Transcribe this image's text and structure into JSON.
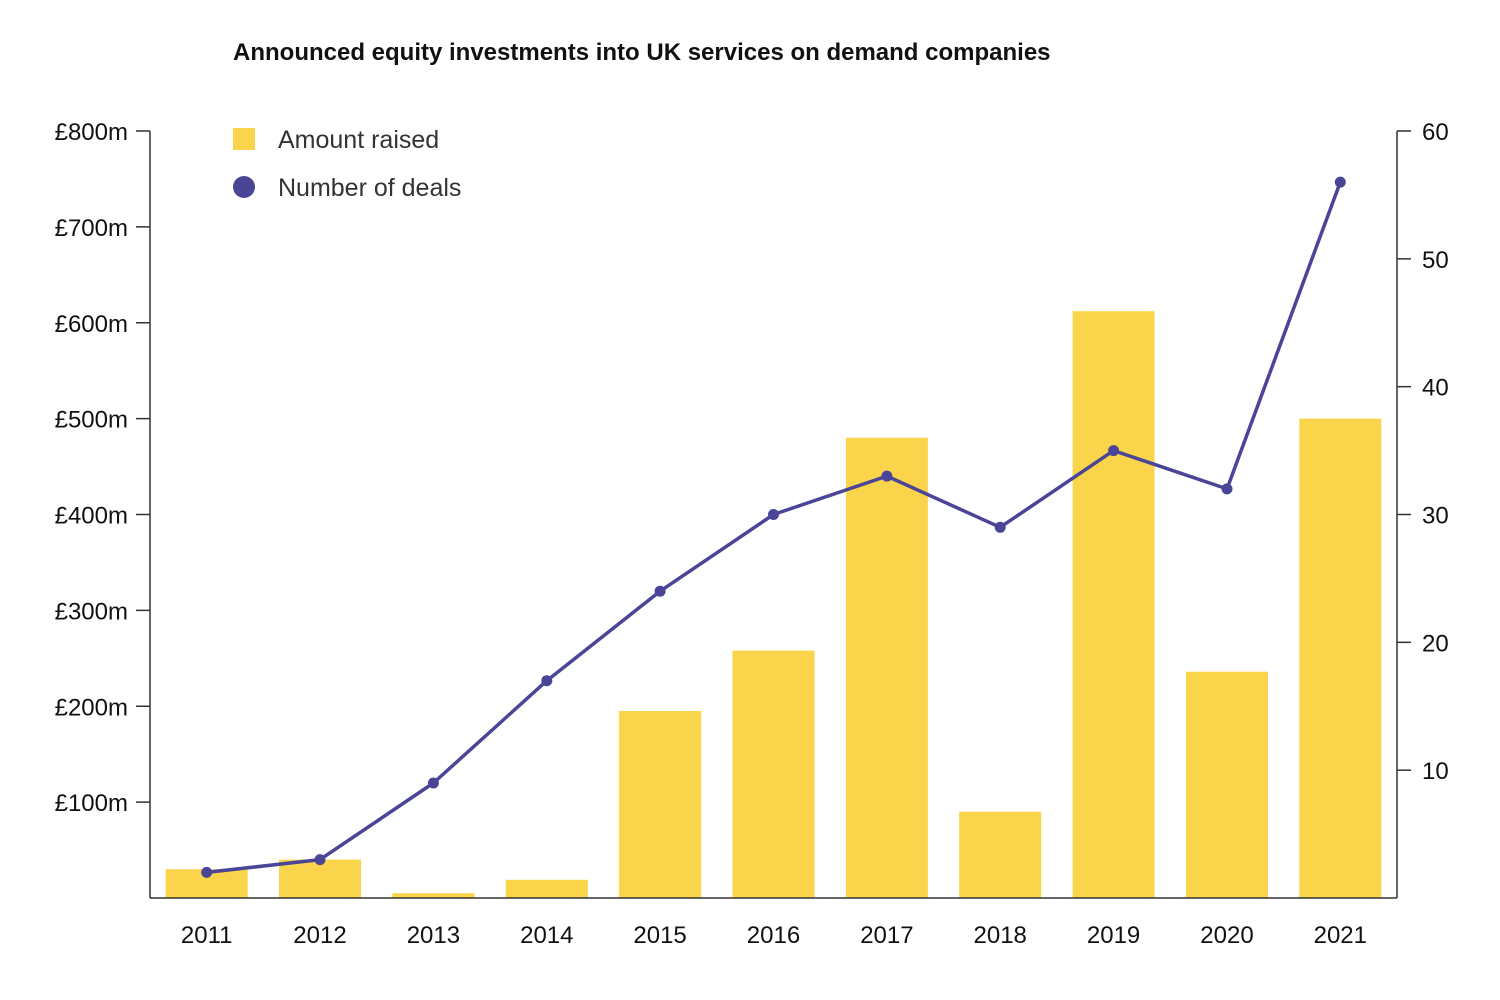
{
  "chart_data": {
    "type": "bar",
    "title": "Announced equity investments into UK services on demand companies",
    "categories": [
      "2011",
      "2012",
      "2013",
      "2014",
      "2015",
      "2016",
      "2017",
      "2018",
      "2019",
      "2020",
      "2021"
    ],
    "series": [
      {
        "name": "Amount raised",
        "type": "bar",
        "axis": "left",
        "color": "#FAD44A",
        "values": [
          30,
          40,
          5,
          19,
          195,
          258,
          480,
          90,
          612,
          236,
          500
        ]
      },
      {
        "name": "Number of deals",
        "type": "line",
        "axis": "right",
        "color": "#4A4596",
        "values": [
          2,
          3,
          9,
          17,
          24,
          30,
          33,
          29,
          35,
          32,
          56
        ]
      }
    ],
    "y_left": {
      "ylim": [
        0,
        800
      ],
      "ticks": [
        100,
        200,
        300,
        400,
        500,
        600,
        700,
        800
      ],
      "tick_labels": [
        "£100m",
        "£200m",
        "£300m",
        "£400m",
        "£500m",
        "£600m",
        "£700m",
        "£800m"
      ]
    },
    "y_right": {
      "ylim": [
        0,
        60
      ],
      "ticks": [
        10,
        20,
        30,
        40,
        50,
        60
      ],
      "tick_labels": [
        "10",
        "20",
        "30",
        "40",
        "50",
        "60"
      ]
    },
    "xlabel": "",
    "ylabel": "",
    "grid": false,
    "legend_position": "top-left"
  }
}
